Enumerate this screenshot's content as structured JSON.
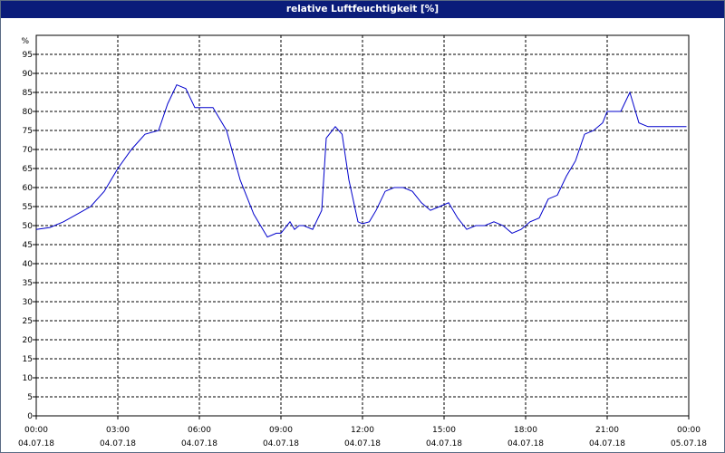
{
  "window": {
    "title": "relative Luftfeuchtigkeit [%]"
  },
  "chart_data": {
    "type": "line",
    "title": "relative Luftfeuchtigkeit [%]",
    "ylabel": "%",
    "xlabel": "",
    "ylim": [
      0,
      100
    ],
    "xlim": [
      "04.07.18 00:00",
      "05.07.18 00:00"
    ],
    "grid": true,
    "line_color": "#0000cc",
    "y_ticks": [
      "0",
      "5",
      "10",
      "15",
      "20",
      "25",
      "30",
      "35",
      "40",
      "45",
      "50",
      "55",
      "60",
      "65",
      "70",
      "75",
      "80",
      "85",
      "90",
      "95"
    ],
    "x_ticks": [
      {
        "time": "00:00",
        "date": "04.07.18"
      },
      {
        "time": "03:00",
        "date": "04.07.18"
      },
      {
        "time": "06:00",
        "date": "04.07.18"
      },
      {
        "time": "09:00",
        "date": "04.07.18"
      },
      {
        "time": "12:00",
        "date": "04.07.18"
      },
      {
        "time": "15:00",
        "date": "04.07.18"
      },
      {
        "time": "18:00",
        "date": "04.07.18"
      },
      {
        "time": "21:00",
        "date": "04.07.18"
      },
      {
        "time": "00:00",
        "date": "05.07.18"
      }
    ],
    "series": [
      {
        "x": [
          "04.07.18 00:00",
          "04.07.18 00:30",
          "04.07.18 01:00",
          "04.07.18 01:30",
          "04.07.18 02:00",
          "04.07.18 02:30",
          "04.07.18 03:00",
          "04.07.18 03:30",
          "04.07.18 04:00",
          "04.07.18 04:30",
          "04.07.18 04:50",
          "04.07.18 05:10",
          "04.07.18 05:30",
          "04.07.18 05:50",
          "04.07.18 06:10",
          "04.07.18 06:30",
          "04.07.18 07:00",
          "04.07.18 07:30",
          "04.07.18 08:00",
          "04.07.18 08:30",
          "04.07.18 08:50",
          "04.07.18 09:00",
          "04.07.18 09:20",
          "04.07.18 09:30",
          "04.07.18 09:40",
          "04.07.18 09:50",
          "04.07.18 10:10",
          "04.07.18 10:30",
          "04.07.18 10:40",
          "04.07.18 11:00",
          "04.07.18 11:15",
          "04.07.18 11:30",
          "04.07.18 11:50",
          "04.07.18 12:00",
          "04.07.18 12:15",
          "04.07.18 12:30",
          "04.07.18 12:50",
          "04.07.18 13:10",
          "04.07.18 13:30",
          "04.07.18 13:50",
          "04.07.18 14:10",
          "04.07.18 14:30",
          "04.07.18 14:50",
          "04.07.18 15:10",
          "04.07.18 15:30",
          "04.07.18 15:50",
          "04.07.18 16:10",
          "04.07.18 16:30",
          "04.07.18 16:50",
          "04.07.18 17:10",
          "04.07.18 17:30",
          "04.07.18 17:50",
          "04.07.18 18:10",
          "04.07.18 18:30",
          "04.07.18 18:50",
          "04.07.18 19:10",
          "04.07.18 19:30",
          "04.07.18 19:50",
          "04.07.18 20:10",
          "04.07.18 20:30",
          "04.07.18 20:50",
          "04.07.18 21:00",
          "04.07.18 21:15",
          "04.07.18 21:30",
          "04.07.18 21:50",
          "04.07.18 22:10",
          "04.07.18 22:30",
          "04.07.18 22:50",
          "04.07.18 23:00",
          "04.07.18 23:10",
          "04.07.18 23:20",
          "04.07.18 23:40",
          "04.07.18 23:55"
        ],
        "values": [
          49,
          49.5,
          51,
          53,
          55,
          59,
          65,
          70,
          74,
          75,
          82,
          87,
          86,
          81,
          81,
          81,
          75,
          62,
          53,
          47,
          48,
          48,
          51,
          49,
          50,
          50,
          49,
          54,
          73,
          76,
          74,
          62,
          51,
          50.5,
          51,
          54,
          59,
          60,
          60,
          59,
          56,
          54,
          55,
          56,
          52,
          49,
          50,
          50,
          51,
          50,
          48,
          49,
          51,
          52,
          57,
          58,
          63,
          67,
          74,
          75,
          77,
          80,
          80,
          80,
          85,
          77,
          76,
          76,
          76,
          76,
          76,
          76,
          76
        ]
      }
    ]
  }
}
